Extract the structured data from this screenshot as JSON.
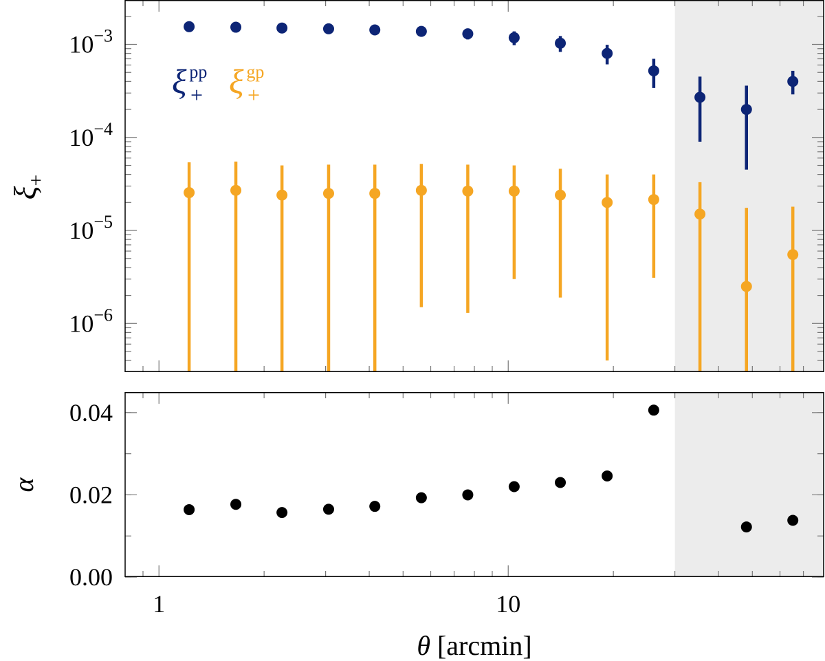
{
  "chart_data": [
    {
      "type": "scatter",
      "panel": "top",
      "xscale": "log",
      "yscale": "log",
      "xlim": [
        0.8,
        80
      ],
      "ylim": [
        3e-07,
        0.003
      ],
      "ylabel_symbol": "ξ",
      "ylabel_sub": "+",
      "xticks": [
        {
          "value": 1,
          "label": "1"
        },
        {
          "value": 10,
          "label": "10"
        }
      ],
      "yticks": [
        {
          "value": 0.001,
          "base": "10",
          "exp": "−3"
        },
        {
          "value": 0.0001,
          "base": "10",
          "exp": "−4"
        },
        {
          "value": 1e-05,
          "base": "10",
          "exp": "−5"
        },
        {
          "value": 1e-06,
          "base": "10",
          "exp": "−6"
        }
      ],
      "shaded_region": {
        "x_from": 30,
        "x_to": 80,
        "color": "#ececec"
      },
      "legend": {
        "placement": "upper-left",
        "entries": [
          {
            "symbol": "ξ",
            "sub": "+",
            "sup": "pp",
            "color": "#0d2576"
          },
          {
            "symbol": "ξ",
            "sub": "+",
            "sup": "gp",
            "color": "#f5a623"
          }
        ]
      },
      "x": [
        1.22,
        1.66,
        2.25,
        3.06,
        4.15,
        5.64,
        7.66,
        10.4,
        14.1,
        19.2,
        26.1,
        35.4,
        48.1,
        65.3
      ],
      "series": [
        {
          "name": "xi_plus_pp",
          "color": "#0d2576",
          "values": [
            0.00155,
            0.00153,
            0.0015,
            0.00147,
            0.00143,
            0.00138,
            0.0013,
            0.00118,
            0.00103,
            0.0008,
            0.00052,
            0.00027,
            0.0002,
            0.0004
          ],
          "err_low": [
            0.00149,
            0.00147,
            0.00144,
            0.0014,
            0.00133,
            0.00125,
            0.00113,
            0.00098,
            0.00083,
            0.00061,
            0.00034,
            9e-05,
            4.5e-05,
            0.00029
          ],
          "err_high": [
            0.00161,
            0.00159,
            0.00156,
            0.00154,
            0.00153,
            0.00151,
            0.00147,
            0.00138,
            0.00123,
            0.00099,
            0.0007,
            0.00045,
            0.00036,
            0.00052
          ]
        },
        {
          "name": "xi_plus_gp",
          "color": "#f5a623",
          "values": [
            2.55e-05,
            2.7e-05,
            2.4e-05,
            2.5e-05,
            2.5e-05,
            2.7e-05,
            2.65e-05,
            2.65e-05,
            2.4e-05,
            2e-05,
            2.15e-05,
            1.5e-05,
            2.5e-06,
            5.5e-06
          ],
          "err_low": [
            1e-08,
            1e-08,
            1e-08,
            1e-08,
            1e-08,
            1.5e-06,
            1.3e-06,
            3e-06,
            1.9e-06,
            4e-07,
            3.1e-06,
            1e-08,
            1e-08,
            1e-08
          ],
          "err_high": [
            5.4e-05,
            5.5e-05,
            5e-05,
            5.1e-05,
            5.1e-05,
            5.2e-05,
            5.1e-05,
            5e-05,
            4.6e-05,
            4e-05,
            4e-05,
            3.3e-05,
            1.75e-05,
            1.8e-05
          ]
        }
      ]
    },
    {
      "type": "scatter",
      "panel": "bottom",
      "xscale": "log",
      "yscale": "linear",
      "xlim": [
        0.8,
        80
      ],
      "ylim": [
        0.0,
        0.045
      ],
      "ylabel": "α",
      "xlabel_symbol": "θ",
      "xlabel_unit": "[arcmin]",
      "xticks": [
        {
          "value": 1,
          "label": "1"
        },
        {
          "value": 10,
          "label": "10"
        }
      ],
      "yticks": [
        {
          "value": 0.0,
          "label": "0.00"
        },
        {
          "value": 0.02,
          "label": "0.02"
        },
        {
          "value": 0.04,
          "label": "0.04"
        }
      ],
      "shaded_region": {
        "x_from": 30,
        "x_to": 80,
        "color": "#ececec"
      },
      "x": [
        1.22,
        1.66,
        2.25,
        3.06,
        4.15,
        5.64,
        7.66,
        10.4,
        14.1,
        19.2,
        26.1,
        48.1,
        65.3
      ],
      "series": [
        {
          "name": "alpha",
          "color": "#000000",
          "values": [
            0.0164,
            0.0177,
            0.0157,
            0.0165,
            0.0172,
            0.0193,
            0.02,
            0.022,
            0.023,
            0.0246,
            0.0406,
            0.0122,
            0.0138
          ]
        }
      ]
    }
  ]
}
